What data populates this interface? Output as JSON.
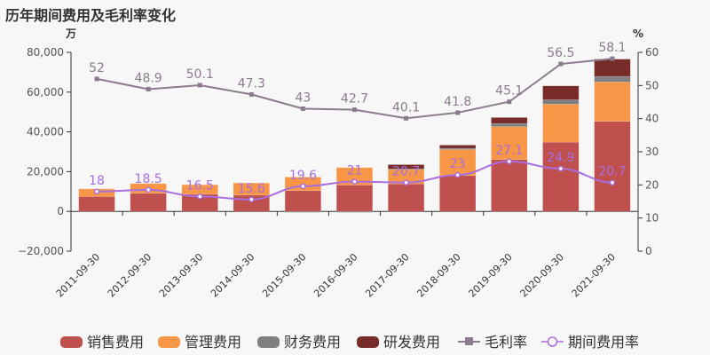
{
  "chart_data": {
    "type": "bar",
    "title": "历年期间费用及毛利率变化",
    "left_axis": {
      "unit": "万",
      "ylim": [
        -20000,
        80000
      ],
      "ticks": [
        -20000,
        0,
        20000,
        40000,
        60000,
        80000
      ],
      "tick_labels": [
        "−20,000",
        "0",
        "20,000",
        "40,000",
        "60,000",
        "80,000"
      ]
    },
    "right_axis": {
      "unit": "%",
      "ylim": [
        0,
        60
      ],
      "ticks": [
        0,
        10,
        20,
        30,
        40,
        50,
        60
      ],
      "tick_labels": [
        "0",
        "10",
        "20",
        "30",
        "40",
        "50",
        "60"
      ]
    },
    "categories": [
      "2011-09-30",
      "2012-09-30",
      "2013-09-30",
      "2014-09-30",
      "2015-09-30",
      "2016-09-30",
      "2017-09-30",
      "2018-09-30",
      "2019-09-30",
      "2020-09-30",
      "2021-09-30"
    ],
    "bar_series": [
      {
        "name": "销售费用",
        "color": "#c0504d",
        "values": [
          7450,
          9090,
          8640,
          8190,
          10430,
          13260,
          13850,
          18020,
          26080,
          34860,
          45270
        ]
      },
      {
        "name": "管理费用",
        "color": "#f79646",
        "values": [
          3870,
          4910,
          4760,
          6110,
          6850,
          8790,
          7450,
          13120,
          16520,
          19070,
          19830
        ]
      },
      {
        "name": "财务费用",
        "color": "#7f7f7f",
        "values": [
          0,
          0,
          0,
          0,
          -500,
          -500,
          100,
          600,
          1650,
          2240,
          2800
        ]
      },
      {
        "name": "研发费用",
        "color": "#772c2a",
        "values": [
          0,
          0,
          0,
          0,
          0,
          0,
          2130,
          1630,
          2990,
          6980,
          8700
        ]
      }
    ],
    "line_series": [
      {
        "name": "毛利率",
        "color": "#8c7b8e",
        "axis": "right",
        "marker": "square",
        "values": [
          52,
          48.9,
          50.1,
          47.3,
          43,
          42.7,
          40.1,
          41.8,
          45.1,
          56.5,
          58.1
        ],
        "labels": [
          "52",
          "48.9",
          "50.1",
          "47.3",
          "43",
          "42.7",
          "40.1",
          "41.8",
          "45.1",
          "56.5",
          "58.1"
        ]
      },
      {
        "name": "期间费用率",
        "color": "#a86ee0",
        "axis": "right",
        "marker": "circle",
        "values": [
          18,
          18.5,
          16.5,
          15.6,
          19.6,
          21,
          20.7,
          23,
          27.1,
          24.9,
          20.7
        ],
        "labels": [
          "18",
          "18.5",
          "16.5",
          "15.6",
          "19.6",
          "21",
          "20.7",
          "23",
          "27.1",
          "24.9",
          "20.7"
        ]
      }
    ],
    "legend": {
      "position": "bottom",
      "entries": [
        "销售费用",
        "管理费用",
        "财务费用",
        "研发费用",
        "毛利率",
        "期间费用率"
      ]
    }
  }
}
